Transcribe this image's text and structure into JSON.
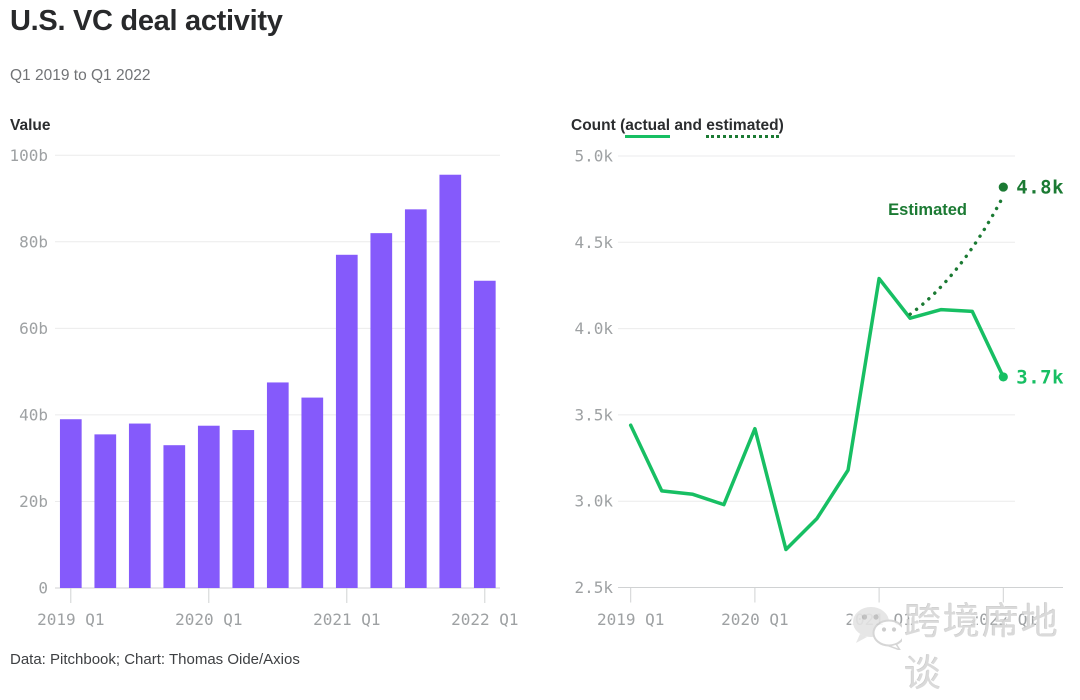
{
  "header": {
    "title": "U.S. VC deal activity",
    "subtitle": "Q1 2019 to Q1 2022"
  },
  "left_panel_label": "Value",
  "right_panel_label": {
    "prefix": "Count (",
    "actual": "actual",
    "mid": " and ",
    "estimated": "estimated",
    "suffix": ")"
  },
  "footer": {
    "credit": "Data: Pitchbook; Chart: Thomas Oide/Axios"
  },
  "watermark": {
    "icon": "wechat-icon",
    "text": "跨境席地谈"
  },
  "colors": {
    "bar_purple": "#855afb",
    "line_green": "#17bf63",
    "estimate_dark_green": "#1b7a33",
    "axis_text": "#9ea1a3",
    "gridline": "#ebebec",
    "axis_line": "#d0d2d3",
    "title_text": "#28292b",
    "subtitle_text": "#717376",
    "footer_text": "#3e4043"
  },
  "chart_data": [
    {
      "type": "bar",
      "title": "Value",
      "unit": "billions of dollars",
      "categories": [
        "2019 Q1",
        "2019 Q2",
        "2019 Q3",
        "2019 Q4",
        "2020 Q1",
        "2020 Q2",
        "2020 Q3",
        "2020 Q4",
        "2021 Q1",
        "2021 Q2",
        "2021 Q3",
        "2021 Q4",
        "2022 Q1"
      ],
      "values": [
        39,
        35.5,
        38,
        33,
        37.5,
        36.5,
        47.5,
        44,
        77,
        82,
        87.5,
        95.5,
        71
      ],
      "ylim": [
        0,
        100
      ],
      "yticks": [
        0,
        20,
        40,
        60,
        80,
        100
      ],
      "ytick_labels": [
        "0",
        "20b",
        "40b",
        "60b",
        "80b",
        "100b"
      ],
      "xtick_labels": [
        "2019 Q1",
        "2020 Q1",
        "2021 Q1",
        "2022 Q1"
      ],
      "grid": true,
      "legend": false
    },
    {
      "type": "line",
      "title": "Count (actual and estimated)",
      "unit": "thousands of deals",
      "categories": [
        "2019 Q1",
        "2019 Q2",
        "2019 Q3",
        "2019 Q4",
        "2020 Q1",
        "2020 Q2",
        "2020 Q3",
        "2020 Q4",
        "2021 Q1",
        "2021 Q2",
        "2021 Q3",
        "2021 Q4",
        "2022 Q1"
      ],
      "series": [
        {
          "name": "actual",
          "style": "solid",
          "values": [
            3.44,
            3.06,
            3.04,
            2.98,
            3.42,
            2.72,
            2.9,
            3.18,
            4.29,
            4.06,
            4.11,
            4.1,
            3.72
          ]
        },
        {
          "name": "estimated",
          "style": "dotted",
          "start_index": 9,
          "start_value": 4.06,
          "end_index": 12,
          "end_value": 4.82
        }
      ],
      "ylim": [
        2.5,
        5.0
      ],
      "yticks": [
        2.5,
        3.0,
        3.5,
        4.0,
        4.5,
        5.0
      ],
      "ytick_labels": [
        "2.5k",
        "3.0k",
        "3.5k",
        "4.0k",
        "4.5k",
        "5.0k"
      ],
      "xtick_labels": [
        "2019 Q1",
        "2020 Q1",
        "2021 Q1",
        "2022 Q1"
      ],
      "annotations": {
        "estimated_label": "Estimated",
        "estimated_end_label": "4.8k",
        "actual_end_label": "3.7k"
      },
      "grid": true,
      "legend": "underlined words in panel label"
    }
  ]
}
